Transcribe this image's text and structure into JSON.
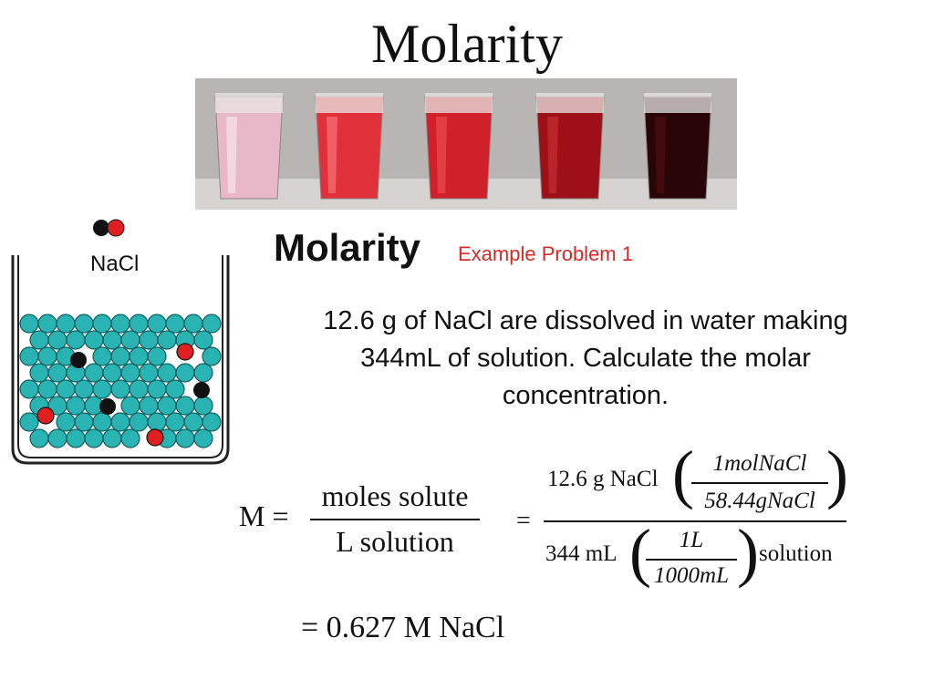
{
  "title": "Molarity",
  "photo": {
    "cups": [
      {
        "color": "#e8b8c8",
        "shade": "#f4dde6"
      },
      {
        "color": "#e0303a",
        "shade": "#f36a70"
      },
      {
        "color": "#d0202a",
        "shade": "#e8464c"
      },
      {
        "color": "#9e1018",
        "shade": "#c02a30"
      },
      {
        "color": "#2a0508",
        "shade": "#4a0c10"
      }
    ]
  },
  "nacl_label": "NaCl",
  "heading": "Molarity",
  "subtitle": "Example Problem 1",
  "problem_lines": [
    "12.6 g of NaCl are dissolved in water making",
    "344mL of solution.  Calculate the molar",
    "concentration."
  ],
  "formula": {
    "lhs": "M =",
    "numerator": "moles solute",
    "denominator": "L solution",
    "equals": "=",
    "top_value": "12.6 g NaCl",
    "conv1_num": "1molNaCl",
    "conv1_den": "58.44gNaCl",
    "bottom_value": "344 mL",
    "conv2_num": "1L",
    "conv2_den": "1000mL",
    "bottom_unit": "solution",
    "result": "= 0.627 M  NaCl"
  }
}
